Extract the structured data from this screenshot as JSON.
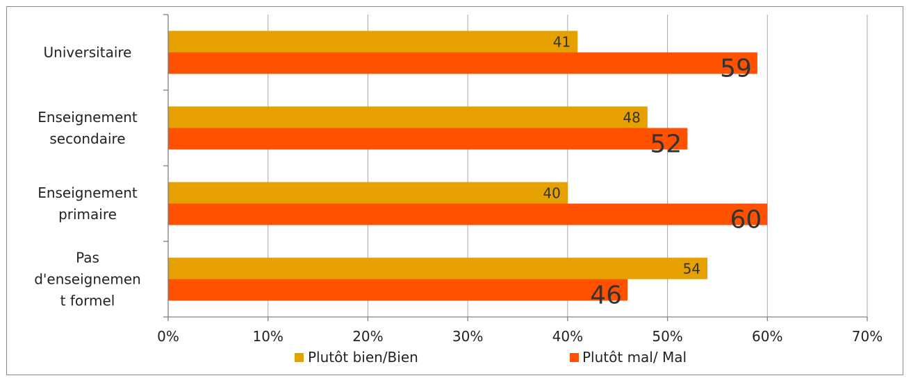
{
  "chart_data": {
    "type": "bar",
    "orientation": "horizontal",
    "categories": [
      [
        "Universitaire"
      ],
      [
        "Enseignement",
        "secondaire"
      ],
      [
        "Enseignement",
        "primaire"
      ],
      [
        "Pas",
        "d'enseignemen",
        "t formel"
      ]
    ],
    "series": [
      {
        "name": "Plutôt bien/Bien",
        "values": [
          41,
          48,
          40,
          54
        ],
        "data_labels": [
          "41",
          "48",
          "40",
          "54"
        ],
        "color": "#E6A100"
      },
      {
        "name": "Plutôt mal/ Mal",
        "values": [
          59,
          52,
          60,
          46
        ],
        "data_labels": [
          "59",
          "52",
          "60",
          "46"
        ],
        "color": "#FF5100"
      }
    ],
    "x_ticks": [
      "0%",
      "10%",
      "20%",
      "30%",
      "40%",
      "50%",
      "60%",
      "70%"
    ],
    "xlim": [
      0,
      70
    ],
    "value_unit": "percent",
    "grid": "vertical",
    "legend_position": "bottom"
  }
}
